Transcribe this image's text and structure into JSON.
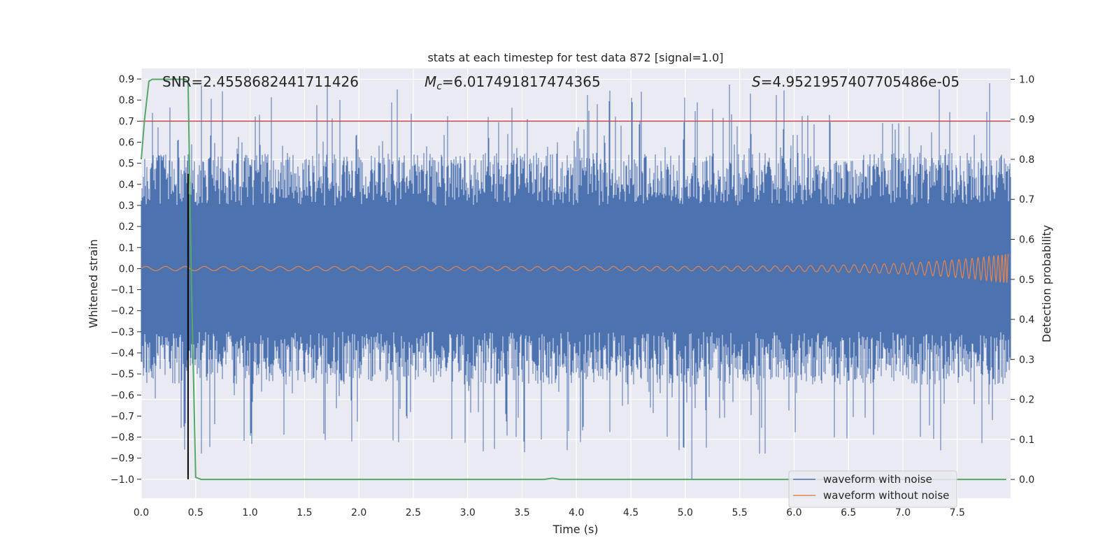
{
  "chart_data": {
    "type": "line",
    "title": "stats at each timestep for test data 872 [signal=1.0]",
    "xlabel": "Time (s)",
    "ylabel_left": "Whitened strain",
    "ylabel_right": "Detection probability",
    "xlim": [
      0.0,
      7.99
    ],
    "ylim_left": [
      -1.09,
      0.95
    ],
    "ylim_right": [
      -0.047,
      1.027
    ],
    "x_ticks": [
      0.0,
      0.5,
      1.0,
      1.5,
      2.0,
      2.5,
      3.0,
      3.5,
      4.0,
      4.5,
      5.0,
      5.5,
      6.0,
      6.5,
      7.0,
      7.5
    ],
    "x_tick_labels": [
      "0.0",
      "0.5",
      "1.0",
      "1.5",
      "2.0",
      "2.5",
      "3.0",
      "3.5",
      "4.0",
      "4.5",
      "5.0",
      "5.5",
      "6.0",
      "6.5",
      "7.0",
      "7.5"
    ],
    "y_left_ticks": [
      -1.0,
      -0.9,
      -0.8,
      -0.7,
      -0.6,
      -0.5,
      -0.4,
      -0.3,
      -0.2,
      -0.1,
      0.0,
      0.1,
      0.2,
      0.3,
      0.4,
      0.5,
      0.6,
      0.7,
      0.8,
      0.9
    ],
    "y_left_tick_labels": [
      "−1.0",
      "−0.9",
      "−0.8",
      "−0.7",
      "−0.6",
      "−0.5",
      "−0.4",
      "−0.3",
      "−0.2",
      "−0.1",
      "0.0",
      "0.1",
      "0.2",
      "0.3",
      "0.4",
      "0.5",
      "0.6",
      "0.7",
      "0.8",
      "0.9"
    ],
    "y_right_ticks": [
      0.0,
      0.1,
      0.2,
      0.3,
      0.4,
      0.5,
      0.6,
      0.7,
      0.8,
      0.9,
      1.0
    ],
    "y_right_tick_labels": [
      "0.0",
      "0.1",
      "0.2",
      "0.3",
      "0.4",
      "0.5",
      "0.6",
      "0.7",
      "0.8",
      "0.9",
      "1.0"
    ],
    "annotations": {
      "snr_text": "SNR=2.4558682441711426",
      "mc_prefix": "M",
      "mc_sub": "c",
      "mc_value": "=6.017491817474365",
      "s_prefix": "S",
      "s_value": "=4.9521957407705486e-05"
    },
    "series": [
      {
        "name": "waveform with noise",
        "color": "#4c72b0",
        "axis": "left",
        "envelope_typical": 0.5,
        "envelope_peak": 0.88,
        "min_spike": -1.0,
        "min_spike_x": 5.06
      },
      {
        "name": "waveform without noise",
        "color": "#dd8452",
        "axis": "left",
        "amplitude_start": 0.01,
        "amplitude_end": 0.07
      },
      {
        "name": "detection probability",
        "color": "#55a868",
        "axis": "right",
        "x": [
          0.0,
          0.03,
          0.07,
          0.1,
          0.2,
          0.3,
          0.4,
          0.43,
          0.46,
          0.5,
          0.55,
          0.6,
          3.7,
          3.78,
          3.85,
          4.0,
          7.95
        ],
        "y": [
          0.8,
          0.9,
          0.995,
          1.0,
          1.0,
          1.0,
          1.0,
          0.995,
          0.5,
          0.005,
          0.0,
          0.0,
          0.0,
          0.003,
          0.0,
          0.0,
          0.0
        ]
      }
    ],
    "threshold_line": {
      "axis": "left",
      "y": 0.7,
      "color": "#c44e52"
    },
    "vertical_marker": {
      "x": 0.43,
      "y_from": -1.0,
      "y_to": 0.45,
      "color": "#000000"
    },
    "legend": {
      "position": "lower-right",
      "entries": [
        "waveform with noise",
        "waveform without noise"
      ]
    },
    "grid": true,
    "background": "#eaeaf2"
  }
}
